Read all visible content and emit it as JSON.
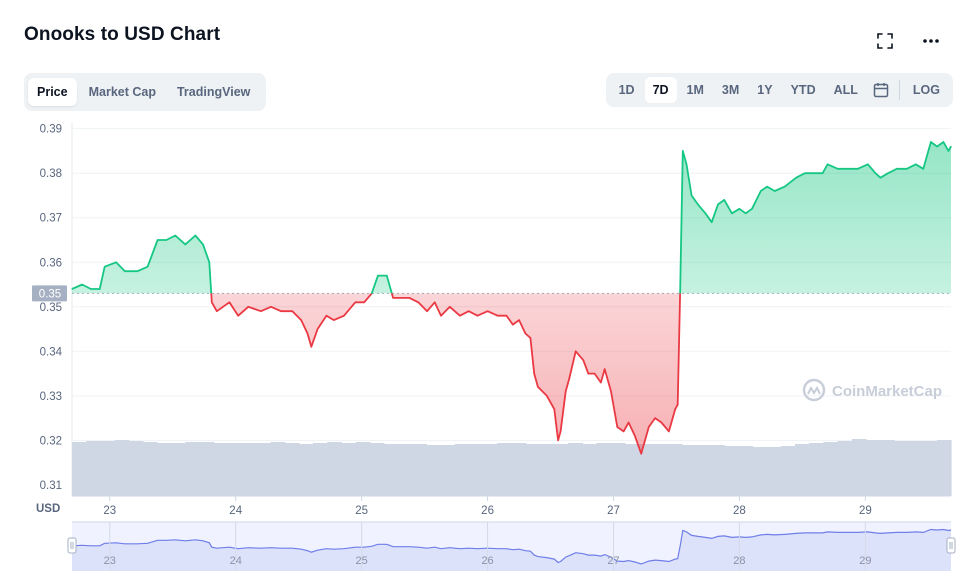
{
  "header": {
    "title": "Onooks to USD Chart"
  },
  "tabs": [
    {
      "label": "Price",
      "active": true
    },
    {
      "label": "Market Cap",
      "active": false
    },
    {
      "label": "TradingView",
      "active": false
    }
  ],
  "ranges": [
    {
      "label": "1D",
      "active": false
    },
    {
      "label": "7D",
      "active": true
    },
    {
      "label": "1M",
      "active": false
    },
    {
      "label": "3M",
      "active": false
    },
    {
      "label": "1Y",
      "active": false
    },
    {
      "label": "YTD",
      "active": false
    },
    {
      "label": "ALL",
      "active": false
    }
  ],
  "log_label": "LOG",
  "watermark": "CoinMarketCap",
  "colors": {
    "up": "#16c784",
    "down": "#ea3943",
    "volume": "#cfd6e4",
    "navigator": "#6f7ee8"
  },
  "icons": [
    "fullscreen-icon",
    "more-icon",
    "calendar-icon",
    "coinmarketcap-logo-icon"
  ],
  "chart_data": {
    "type": "line",
    "xlabel": "",
    "ylabel": "",
    "y_unit_label": "USD",
    "y_ticks": [
      "0.39",
      "0.38",
      "0.37",
      "0.36",
      "0.35",
      "0.34",
      "0.33",
      "0.32",
      "0.31"
    ],
    "ylim": [
      0.3075,
      0.3915
    ],
    "xlim": [
      22.7,
      29.68
    ],
    "x_ticks": [
      "23",
      "24",
      "25",
      "26",
      "27",
      "28",
      "29"
    ],
    "baseline": {
      "value": 0.353,
      "label": "0.35"
    },
    "grid": true,
    "series": [
      {
        "points": [
          [
            22.7,
            0.354
          ],
          [
            22.78,
            0.355
          ],
          [
            22.85,
            0.354
          ],
          [
            22.92,
            0.354
          ],
          [
            22.96,
            0.359
          ],
          [
            23.05,
            0.36
          ],
          [
            23.12,
            0.358
          ],
          [
            23.22,
            0.358
          ],
          [
            23.3,
            0.359
          ],
          [
            23.38,
            0.365
          ],
          [
            23.45,
            0.365
          ],
          [
            23.52,
            0.366
          ],
          [
            23.6,
            0.364
          ],
          [
            23.68,
            0.366
          ],
          [
            23.74,
            0.364
          ],
          [
            23.79,
            0.36
          ],
          [
            23.81,
            0.351
          ],
          [
            23.85,
            0.349
          ],
          [
            23.95,
            0.351
          ],
          [
            24.02,
            0.348
          ],
          [
            24.1,
            0.35
          ],
          [
            24.2,
            0.349
          ],
          [
            24.28,
            0.35
          ],
          [
            24.36,
            0.349
          ],
          [
            24.45,
            0.349
          ],
          [
            24.52,
            0.347
          ],
          [
            24.57,
            0.344
          ],
          [
            24.6,
            0.341
          ],
          [
            24.65,
            0.345
          ],
          [
            24.72,
            0.348
          ],
          [
            24.78,
            0.347
          ],
          [
            24.86,
            0.348
          ],
          [
            24.95,
            0.351
          ],
          [
            25.02,
            0.351
          ],
          [
            25.08,
            0.353
          ],
          [
            25.13,
            0.357
          ],
          [
            25.2,
            0.357
          ],
          [
            25.25,
            0.352
          ],
          [
            25.3,
            0.352
          ],
          [
            25.38,
            0.352
          ],
          [
            25.45,
            0.351
          ],
          [
            25.52,
            0.349
          ],
          [
            25.58,
            0.351
          ],
          [
            25.63,
            0.348
          ],
          [
            25.7,
            0.35
          ],
          [
            25.78,
            0.348
          ],
          [
            25.85,
            0.349
          ],
          [
            25.92,
            0.348
          ],
          [
            26.0,
            0.349
          ],
          [
            26.08,
            0.348
          ],
          [
            26.15,
            0.348
          ],
          [
            26.2,
            0.346
          ],
          [
            26.25,
            0.347
          ],
          [
            26.3,
            0.344
          ],
          [
            26.34,
            0.343
          ],
          [
            26.37,
            0.335
          ],
          [
            26.4,
            0.332
          ],
          [
            26.47,
            0.33
          ],
          [
            26.53,
            0.327
          ],
          [
            26.56,
            0.32
          ],
          [
            26.58,
            0.322
          ],
          [
            26.62,
            0.331
          ],
          [
            26.65,
            0.334
          ],
          [
            26.7,
            0.34
          ],
          [
            26.76,
            0.338
          ],
          [
            26.8,
            0.335
          ],
          [
            26.85,
            0.335
          ],
          [
            26.9,
            0.333
          ],
          [
            26.93,
            0.336
          ],
          [
            26.98,
            0.331
          ],
          [
            27.03,
            0.323
          ],
          [
            27.08,
            0.322
          ],
          [
            27.12,
            0.324
          ],
          [
            27.17,
            0.321
          ],
          [
            27.22,
            0.317
          ],
          [
            27.28,
            0.323
          ],
          [
            27.33,
            0.325
          ],
          [
            27.38,
            0.324
          ],
          [
            27.44,
            0.322
          ],
          [
            27.49,
            0.327
          ],
          [
            27.51,
            0.328
          ],
          [
            27.53,
            0.354
          ],
          [
            27.55,
            0.385
          ],
          [
            27.58,
            0.382
          ],
          [
            27.62,
            0.375
          ],
          [
            27.67,
            0.373
          ],
          [
            27.73,
            0.371
          ],
          [
            27.78,
            0.369
          ],
          [
            27.83,
            0.373
          ],
          [
            27.88,
            0.374
          ],
          [
            27.94,
            0.371
          ],
          [
            28.0,
            0.372
          ],
          [
            28.05,
            0.371
          ],
          [
            28.1,
            0.372
          ],
          [
            28.17,
            0.376
          ],
          [
            28.22,
            0.377
          ],
          [
            28.28,
            0.376
          ],
          [
            28.36,
            0.377
          ],
          [
            28.45,
            0.379
          ],
          [
            28.52,
            0.38
          ],
          [
            28.6,
            0.38
          ],
          [
            28.66,
            0.38
          ],
          [
            28.7,
            0.382
          ],
          [
            28.78,
            0.381
          ],
          [
            28.86,
            0.381
          ],
          [
            28.94,
            0.381
          ],
          [
            29.02,
            0.382
          ],
          [
            29.08,
            0.38
          ],
          [
            29.12,
            0.379
          ],
          [
            29.18,
            0.38
          ],
          [
            29.25,
            0.381
          ],
          [
            29.33,
            0.381
          ],
          [
            29.4,
            0.382
          ],
          [
            29.46,
            0.381
          ],
          [
            29.52,
            0.387
          ],
          [
            29.57,
            0.386
          ],
          [
            29.62,
            0.387
          ],
          [
            29.66,
            0.385
          ],
          [
            29.68,
            0.386
          ]
        ]
      }
    ],
    "volume_level": [
      0.54,
      0.55,
      0.55,
      0.56,
      0.55,
      0.54,
      0.53,
      0.53,
      0.54,
      0.54,
      0.53,
      0.53,
      0.53,
      0.53,
      0.54,
      0.53,
      0.52,
      0.53,
      0.54,
      0.53,
      0.54,
      0.53,
      0.52,
      0.52,
      0.52,
      0.51,
      0.51,
      0.52,
      0.52,
      0.52,
      0.53,
      0.53,
      0.52,
      0.52,
      0.52,
      0.53,
      0.52,
      0.53,
      0.53,
      0.52,
      0.52,
      0.52,
      0.52,
      0.51,
      0.51,
      0.51,
      0.5,
      0.5,
      0.49,
      0.49,
      0.5,
      0.52,
      0.53,
      0.54,
      0.55,
      0.57,
      0.56,
      0.56,
      0.55,
      0.55,
      0.55,
      0.56
    ]
  }
}
